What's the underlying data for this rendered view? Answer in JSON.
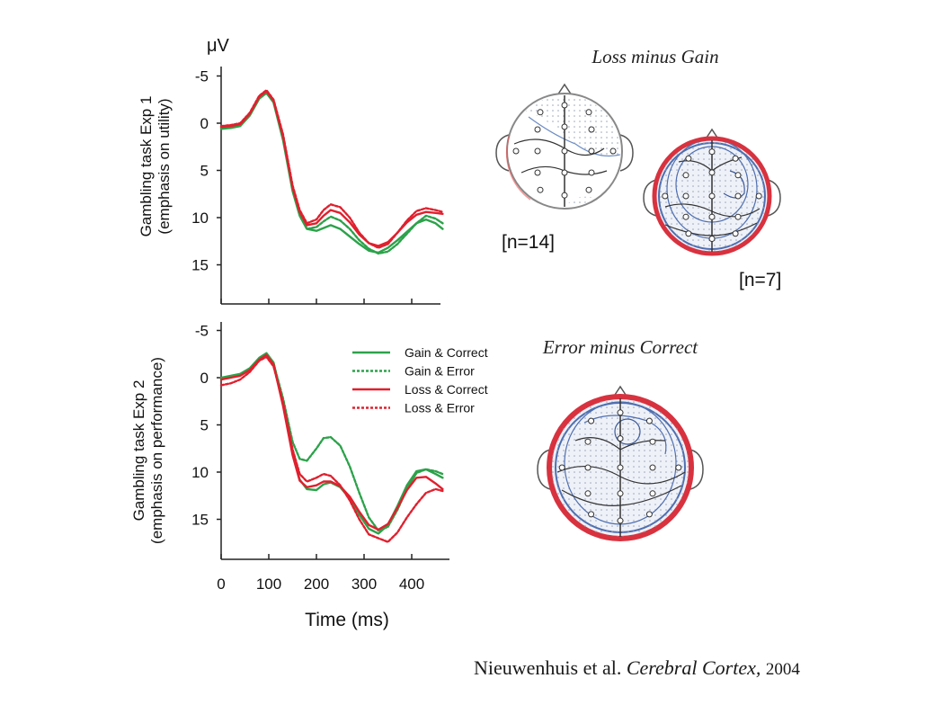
{
  "chart_data": [
    {
      "type": "line",
      "ylabel_unit": "μV",
      "ylabel": [
        "Gambling task Exp 1",
        "(emphasis on utility)"
      ],
      "x_ticks": [
        "0",
        "100",
        "200",
        "300",
        "400"
      ],
      "y_ticks": [
        "-5",
        "0",
        "5",
        "10",
        "15"
      ],
      "xlim": [
        0,
        480
      ],
      "ylim": [
        -6,
        19
      ],
      "y_inverted": true,
      "series": [
        {
          "name": "Gain & Correct",
          "color": "#2ca24a",
          "dash": "solid",
          "x": [
            0,
            20,
            40,
            60,
            80,
            95,
            110,
            130,
            150,
            165,
            180,
            200,
            215,
            230,
            250,
            270,
            290,
            310,
            330,
            350,
            370,
            390,
            410,
            430,
            450,
            465
          ],
          "y": [
            0.6,
            0.5,
            0.3,
            -0.8,
            -2.6,
            -3.2,
            -2.2,
            1.8,
            7.2,
            9.8,
            11.2,
            11.4,
            11.1,
            10.8,
            11.2,
            12.0,
            12.8,
            13.5,
            13.7,
            13.2,
            12.4,
            11.5,
            10.6,
            10.2,
            10.6,
            11.2
          ]
        },
        {
          "name": "Gain & Error",
          "color": "#2ca24a",
          "dash": "dotted",
          "x": [
            0,
            20,
            40,
            60,
            80,
            95,
            110,
            130,
            150,
            165,
            180,
            200,
            215,
            230,
            250,
            270,
            290,
            310,
            330,
            350,
            370,
            390,
            410,
            430,
            450,
            465
          ],
          "y": [
            0.5,
            0.4,
            0.2,
            -0.9,
            -2.7,
            -3.3,
            -2.3,
            1.6,
            7.0,
            9.6,
            11.2,
            11.0,
            10.4,
            9.9,
            10.3,
            11.2,
            12.4,
            13.3,
            13.8,
            13.6,
            12.8,
            11.7,
            10.6,
            9.8,
            10.1,
            10.6
          ]
        },
        {
          "name": "Loss & Correct",
          "color": "#e0202e",
          "dash": "solid",
          "x": [
            0,
            20,
            40,
            60,
            80,
            95,
            110,
            130,
            150,
            165,
            180,
            200,
            215,
            230,
            250,
            270,
            290,
            310,
            330,
            350,
            370,
            390,
            410,
            430,
            450,
            465
          ],
          "y": [
            0.4,
            0.3,
            0.1,
            -1.0,
            -2.8,
            -3.4,
            -2.4,
            1.4,
            6.8,
            9.4,
            10.8,
            10.6,
            9.8,
            9.2,
            9.5,
            10.5,
            11.8,
            12.7,
            13.0,
            12.6,
            11.6,
            10.5,
            9.7,
            9.4,
            9.5,
            9.6
          ]
        },
        {
          "name": "Loss & Error",
          "color": "#e0202e",
          "dash": "dotted",
          "x": [
            0,
            20,
            40,
            60,
            80,
            95,
            110,
            130,
            150,
            165,
            180,
            200,
            215,
            230,
            250,
            270,
            290,
            310,
            330,
            350,
            370,
            390,
            410,
            430,
            450,
            465
          ],
          "y": [
            0.3,
            0.2,
            0.0,
            -1.1,
            -2.9,
            -3.5,
            -2.5,
            1.2,
            6.6,
            9.2,
            10.6,
            10.2,
            9.2,
            8.6,
            8.9,
            10.0,
            11.6,
            12.7,
            13.2,
            12.8,
            11.6,
            10.3,
            9.3,
            9.0,
            9.2,
            9.4
          ]
        }
      ]
    },
    {
      "type": "line",
      "ylabel": [
        "Gambling task Exp 2",
        "(emphasis on performance)"
      ],
      "xlabel": "Time (ms)",
      "x_ticks": [
        "0",
        "100",
        "200",
        "300",
        "400"
      ],
      "y_ticks": [
        "-5",
        "0",
        "5",
        "10",
        "15"
      ],
      "xlim": [
        0,
        480
      ],
      "ylim": [
        -6,
        19
      ],
      "y_inverted": true,
      "legend": "upper-right inside",
      "series": [
        {
          "name": "Gain & Correct",
          "color": "#2ca24a",
          "dash": "solid",
          "x": [
            0,
            20,
            40,
            60,
            80,
            95,
            110,
            130,
            150,
            165,
            180,
            200,
            215,
            230,
            250,
            270,
            290,
            310,
            330,
            350,
            370,
            390,
            410,
            430,
            450,
            465
          ],
          "y": [
            0.0,
            -0.2,
            -0.4,
            -1.0,
            -2.1,
            -2.6,
            -1.6,
            2.8,
            8.0,
            10.8,
            11.8,
            11.9,
            11.3,
            11.1,
            11.6,
            12.8,
            14.5,
            16.0,
            16.5,
            15.6,
            13.6,
            11.4,
            9.9,
            9.7,
            10.2,
            10.6
          ]
        },
        {
          "name": "Gain & Error",
          "color": "#2ca24a",
          "dash": "dotted",
          "x": [
            0,
            20,
            40,
            60,
            80,
            95,
            110,
            130,
            150,
            165,
            180,
            200,
            215,
            230,
            250,
            270,
            290,
            310,
            330,
            350,
            370,
            390,
            410,
            430,
            450,
            465
          ],
          "y": [
            0.1,
            -0.1,
            -0.3,
            -0.9,
            -2.0,
            -2.5,
            -1.5,
            2.2,
            6.8,
            8.6,
            8.8,
            7.5,
            6.4,
            6.3,
            7.2,
            9.4,
            12.2,
            14.8,
            16.2,
            15.8,
            14.0,
            11.8,
            10.1,
            9.7,
            9.9,
            10.2
          ]
        },
        {
          "name": "Loss & Correct",
          "color": "#e0202e",
          "dash": "solid",
          "x": [
            0,
            20,
            40,
            60,
            80,
            95,
            110,
            130,
            150,
            165,
            180,
            200,
            215,
            230,
            250,
            270,
            290,
            310,
            330,
            350,
            370,
            390,
            410,
            430,
            450,
            465
          ],
          "y": [
            0.2,
            0.0,
            -0.2,
            -0.8,
            -1.9,
            -2.4,
            -1.4,
            3.0,
            8.2,
            10.9,
            11.6,
            11.4,
            11.0,
            11.0,
            11.5,
            12.6,
            14.2,
            15.6,
            16.1,
            15.5,
            13.8,
            11.9,
            10.6,
            10.5,
            11.2,
            11.8
          ]
        },
        {
          "name": "Loss & Error",
          "color": "#e0202e",
          "dash": "dotted",
          "x": [
            0,
            20,
            40,
            60,
            80,
            95,
            110,
            130,
            150,
            165,
            180,
            200,
            215,
            230,
            250,
            270,
            290,
            310,
            330,
            350,
            370,
            390,
            410,
            430,
            450,
            465
          ],
          "y": [
            0.8,
            0.6,
            0.2,
            -0.6,
            -1.8,
            -2.2,
            -1.2,
            2.6,
            7.6,
            10.2,
            11.0,
            10.6,
            10.2,
            10.4,
            11.4,
            13.0,
            15.0,
            16.6,
            17.0,
            17.4,
            16.4,
            14.8,
            13.4,
            12.2,
            11.8,
            12.0
          ]
        }
      ]
    }
  ],
  "topomaps": {
    "loss_minus_gain_title": "Loss minus Gain",
    "error_minus_correct_title": "Error minus Correct",
    "n14_label": "[n=14]",
    "n7_label": "[n=7]"
  },
  "citation": {
    "authors": "Nieuwenhuis et al.",
    "journal": "Cerebral Cortex,",
    "year": "2004"
  }
}
